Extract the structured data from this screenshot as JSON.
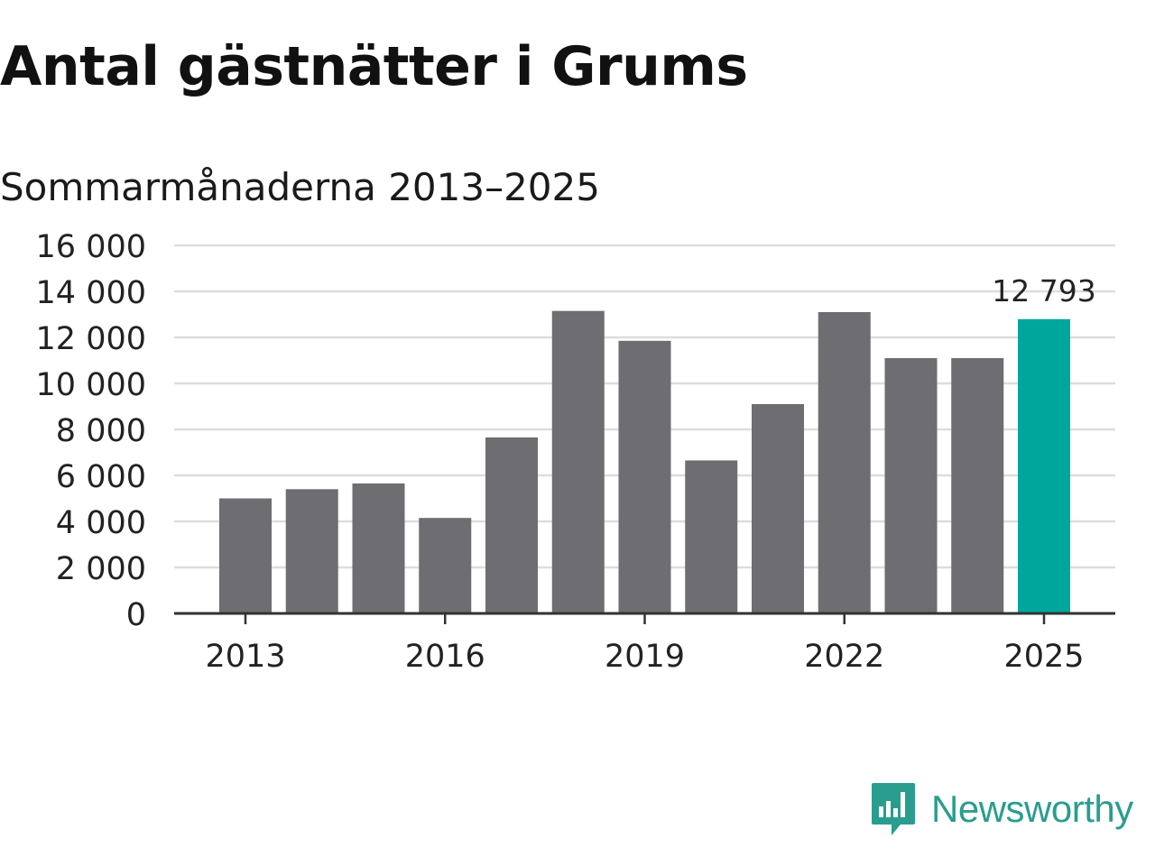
{
  "title": "Antal gästnätter i Grums",
  "subtitle": "Sommarmånaderna 2013–2025",
  "brand": {
    "name": "Newsworthy"
  },
  "colors": {
    "bar": "#6d6d72",
    "highlight": "#00a69c",
    "grid": "#dddddd",
    "axis": "#333333",
    "brand": "#2a9d8f"
  },
  "chart_data": {
    "type": "bar",
    "categories": [
      "2013",
      "2014",
      "2015",
      "2016",
      "2017",
      "2018",
      "2019",
      "2020",
      "2021",
      "2022",
      "2023",
      "2024",
      "2025"
    ],
    "values": [
      5000,
      5400,
      5650,
      4150,
      7650,
      13150,
      11850,
      6650,
      9100,
      13100,
      11100,
      11100,
      12793
    ],
    "highlight": {
      "category": "2025",
      "label": "12 793"
    },
    "x_tick_labels": [
      "2013",
      "2016",
      "2019",
      "2022",
      "2025"
    ],
    "y_ticks": [
      0,
      2000,
      4000,
      6000,
      8000,
      10000,
      12000,
      14000,
      16000
    ],
    "y_tick_labels": [
      "0",
      "2 000",
      "4 000",
      "6 000",
      "8 000",
      "10 000",
      "12 000",
      "14 000",
      "16 000"
    ],
    "ylim": [
      0,
      16000
    ],
    "xlabel": "",
    "ylabel": "",
    "grid": true
  }
}
